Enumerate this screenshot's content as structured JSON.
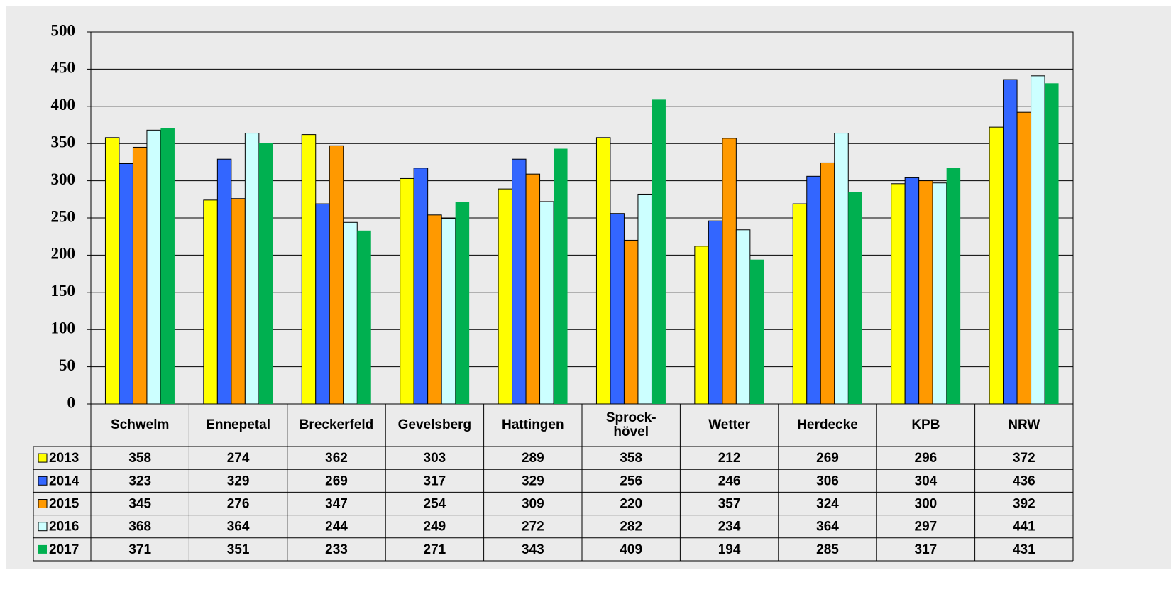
{
  "chart_data": {
    "type": "bar",
    "categories": [
      "Schwelm",
      "Ennepetal",
      "Breckerfeld",
      "Gevelsberg",
      "Hattingen",
      "Sprock-\nhövel",
      "Wetter",
      "Herdecke",
      "KPB",
      "NRW"
    ],
    "series": [
      {
        "name": "2013",
        "color": "#ffff00",
        "border": true,
        "values": [
          358,
          274,
          362,
          303,
          289,
          358,
          212,
          269,
          296,
          372
        ]
      },
      {
        "name": "2014",
        "color": "#3366ff",
        "border": true,
        "values": [
          323,
          329,
          269,
          317,
          329,
          256,
          246,
          306,
          304,
          436
        ]
      },
      {
        "name": "2015",
        "color": "#ff9900",
        "border": true,
        "values": [
          345,
          276,
          347,
          254,
          309,
          220,
          357,
          324,
          300,
          392
        ]
      },
      {
        "name": "2016",
        "color": "#ccffff",
        "border": true,
        "values": [
          368,
          364,
          244,
          249,
          272,
          282,
          234,
          364,
          297,
          441
        ]
      },
      {
        "name": "2017",
        "color": "#00b050",
        "border": false,
        "values": [
          371,
          351,
          233,
          271,
          343,
          409,
          194,
          285,
          317,
          431
        ]
      }
    ],
    "ylim": [
      0,
      500
    ],
    "yticks": [
      0,
      50,
      100,
      150,
      200,
      250,
      300,
      350,
      400,
      450,
      500
    ],
    "grid": true
  }
}
